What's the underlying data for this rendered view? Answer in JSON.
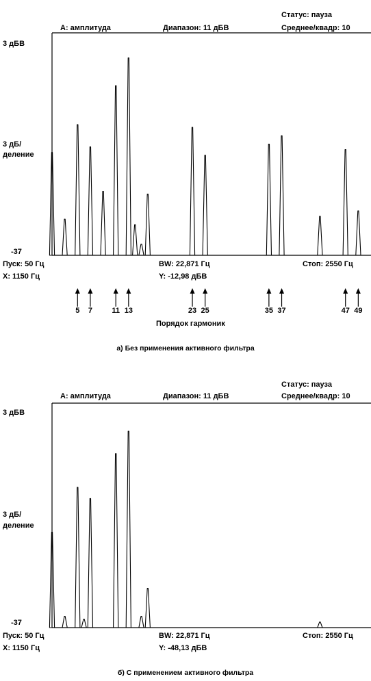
{
  "chart_data": [
    {
      "type": "line",
      "id": "a",
      "header": {
        "amplitude": "A: амплитуда",
        "range": "Диапазон: 11 дБВ",
        "status": "Статус: пауза",
        "averaging": "Среднее/квадр: 10"
      },
      "y_tick_top": "3 дБВ",
      "y_tick_mid_1": "3 дБ/",
      "y_tick_mid_2": "деление",
      "y_tick_bottom": "-37",
      "footer": {
        "start": "Пуск: 50 Гц",
        "bw": "BW: 22,871 Гц",
        "stop": "Стоп: 2550 Гц",
        "x": "X: 1150 Гц",
        "y": "Y: -12,98 дБВ"
      },
      "xlim": [
        50,
        2550
      ],
      "ylim": [
        -37,
        3
      ],
      "peaks_hz_dbv": [
        [
          50,
          -18.5
        ],
        [
          150,
          -30.5
        ],
        [
          250,
          -13.5
        ],
        [
          350,
          -17.5
        ],
        [
          450,
          -25.5
        ],
        [
          550,
          -6.5
        ],
        [
          650,
          -1.5
        ],
        [
          700,
          -31.5
        ],
        [
          750,
          -35.0
        ],
        [
          800,
          -26.0
        ],
        [
          1150,
          -14.0
        ],
        [
          1250,
          -19.0
        ],
        [
          1750,
          -17.0
        ],
        [
          1850,
          -15.5
        ],
        [
          2150,
          -30.0
        ],
        [
          2350,
          -18.0
        ],
        [
          2450,
          -29.0
        ]
      ],
      "harmonic_markers": [
        "5",
        "7",
        "11",
        "13",
        "23",
        "25",
        "35",
        "37",
        "47",
        "49"
      ],
      "harmonic_label": "Порядок гармоник",
      "caption": "а) Без применения активного фильтра"
    },
    {
      "type": "line",
      "id": "b",
      "header": {
        "amplitude": "A: амплитуда",
        "range": "Диапазон: 11 дБВ",
        "status": "Статус: пауза",
        "averaging": "Среднее/квадр: 10"
      },
      "y_tick_top": "3 дБВ",
      "y_tick_mid_1": "3 дБ/",
      "y_tick_mid_2": "деление",
      "y_tick_bottom": "-37",
      "footer": {
        "start": "Пуск: 50 Гц",
        "bw": "BW: 22,871 Гц",
        "stop": "Стоп: 2550 Гц",
        "x": "X: 1150 Гц",
        "y": "Y: -48,13 дБВ"
      },
      "xlim": [
        50,
        2550
      ],
      "ylim": [
        -37,
        3
      ],
      "peaks_hz_dbv": [
        [
          50,
          -20.0
        ],
        [
          150,
          -35.0
        ],
        [
          250,
          -12.0
        ],
        [
          300,
          -35.5
        ],
        [
          350,
          -14.0
        ],
        [
          550,
          -6.0
        ],
        [
          650,
          -2.0
        ],
        [
          750,
          -35.0
        ],
        [
          800,
          -30.0
        ],
        [
          2150,
          -36.0
        ]
      ],
      "caption": "б) С применением активного фильтра"
    }
  ]
}
